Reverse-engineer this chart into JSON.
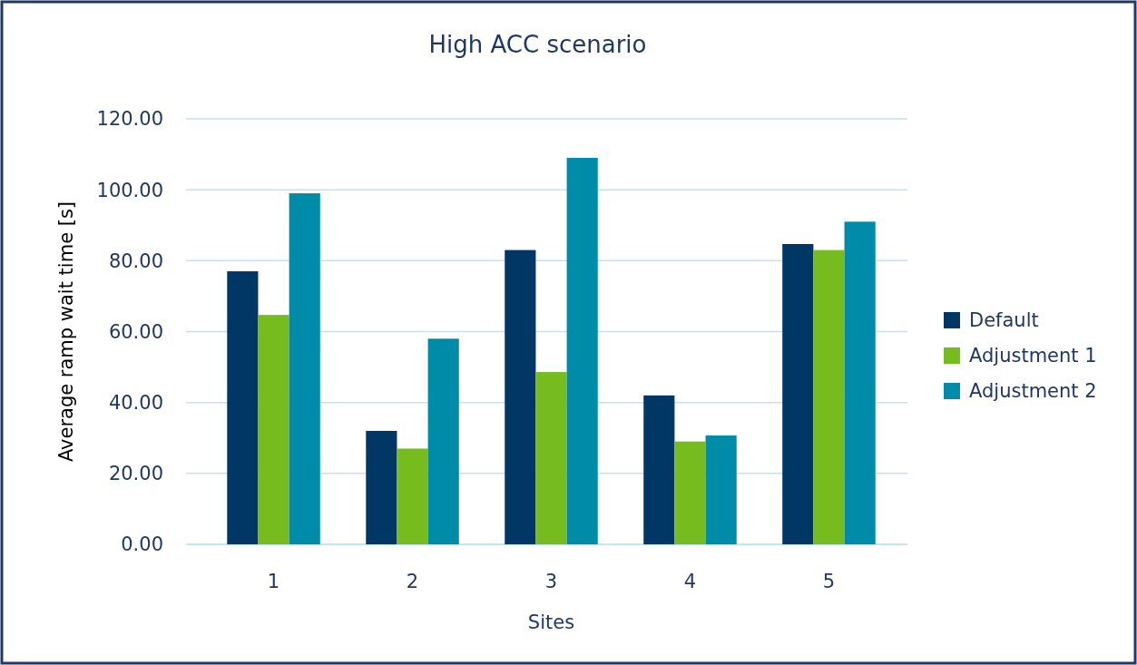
{
  "chart_data": {
    "type": "bar",
    "title": "High ACC scenario",
    "xlabel": "Sites",
    "ylabel": "Average ramp wait time [s]",
    "categories": [
      "1",
      "2",
      "3",
      "4",
      "5"
    ],
    "series": [
      {
        "name": "Default",
        "color": "#003764",
        "values": [
          77,
          32,
          83,
          42,
          84.7
        ]
      },
      {
        "name": "Adjustment 1",
        "color": "#77bc1f",
        "values": [
          64.7,
          27,
          48.6,
          29,
          83
        ]
      },
      {
        "name": "Adjustment 2",
        "color": "#008ca8",
        "values": [
          99,
          58,
          109,
          30.7,
          91
        ]
      }
    ],
    "ylim": [
      0,
      120
    ],
    "yticks": [
      {
        "value": 0,
        "label": "0.00"
      },
      {
        "value": 20,
        "label": "20.00"
      },
      {
        "value": 40,
        "label": "40.00"
      },
      {
        "value": 60,
        "label": "60.00"
      },
      {
        "value": 80,
        "label": "80.00"
      },
      {
        "value": 100,
        "label": "100.00"
      },
      {
        "value": 120,
        "label": "120.00"
      }
    ],
    "grid": "y",
    "legend": "right"
  }
}
